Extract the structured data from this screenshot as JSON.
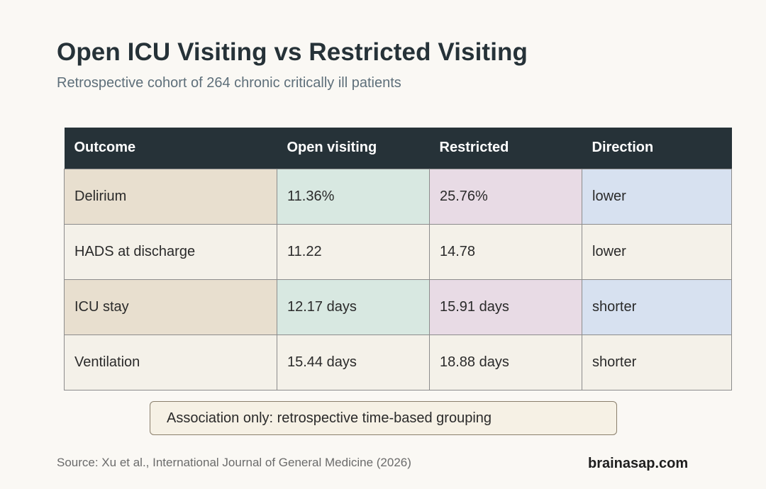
{
  "title": "Open ICU Visiting vs Restricted Visiting",
  "subtitle": "Retrospective cohort of 264 chronic critically ill patients",
  "chart_data": {
    "type": "table",
    "columns": [
      "Outcome",
      "Open visiting",
      "Restricted",
      "Direction"
    ],
    "rows": [
      {
        "outcome": "Delirium",
        "open": "11.36%",
        "restricted": "25.76%",
        "direction": "lower"
      },
      {
        "outcome": "HADS at discharge",
        "open": "11.22",
        "restricted": "14.78",
        "direction": "lower"
      },
      {
        "outcome": "ICU stay",
        "open": "12.17 days",
        "restricted": "15.91 days",
        "direction": "shorter"
      },
      {
        "outcome": "Ventilation",
        "open": "15.44 days",
        "restricted": "18.88 days",
        "direction": "shorter"
      }
    ],
    "highlighted_rows": [
      0,
      2
    ],
    "colors": {
      "header_bg": "#263238",
      "row_bg": "#f4f1e9",
      "highlight_outcome": "#e8dfcf",
      "highlight_open": "#d8e8e1",
      "highlight_restricted": "#e8dbe5",
      "highlight_direction": "#d7e1f0"
    }
  },
  "note": "Association only: retrospective time-based grouping",
  "source": "Source: Xu et al., International Journal of General Medicine (2026)",
  "brand": "brainasap.com"
}
